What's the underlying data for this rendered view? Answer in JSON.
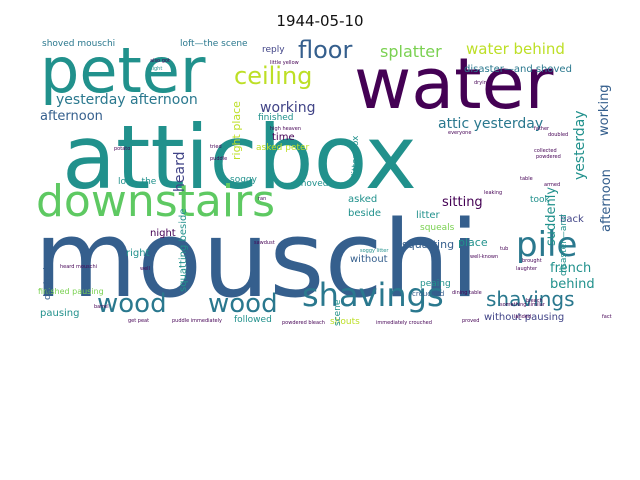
{
  "title": "1944-05-10",
  "colors": {
    "dark_purple": "#440154",
    "indigo": "#414487",
    "blue": "#2a788e",
    "navy": "#355f8d",
    "teal": "#21918c",
    "green": "#22a884",
    "light_green": "#5ec962",
    "lime": "#7ad151",
    "yellow": "#bddf26"
  },
  "words": {
    "mouschi": "mouschi",
    "atticbox": "atticbox",
    "water": "water",
    "peter": "peter",
    "downstairs": "downstairs",
    "pile": "pile",
    "shavings_main": "shavings",
    "shavings_right": "shavings",
    "wood_left": "wood",
    "wood_mid": "wood",
    "floor": "floor",
    "ceiling": "ceiling",
    "splatter": "splatter",
    "water_behind": "water behind",
    "yesterday_afternoon": "yesterday afternoon",
    "attic_yesterday": "attic yesterday",
    "working_left": "working",
    "working_right": "working",
    "afternoon_left": "afternoon",
    "afternoon_right": "afternoon",
    "yesterday_right": "yesterday",
    "heard": "heard",
    "sitting": "sitting",
    "suddenly": "suddenly",
    "french": "french",
    "behind": "behind",
    "right_place": "right place",
    "time": "time",
    "asked_peter": "asked peter",
    "disaster_shoved": "disaster—and shoved",
    "loft_scene": "loft—the scene",
    "shoved_mouschi": "shoved mouschi",
    "reply": "reply",
    "squatting_beside": "squatting beside",
    "litter_box": "litter box",
    "squatting": "squatting",
    "place": "place",
    "without": "without",
    "without_pausing": "without pausing",
    "night": "night",
    "right": "right",
    "pausing": "pausing",
    "finished_pausing": "finished pausing",
    "followed": "followed",
    "shouts": "shouts",
    "asked": "asked",
    "beside": "beside",
    "litter": "litter",
    "back": "back",
    "took": "took",
    "squeals": "squeals",
    "soggy": "soggy",
    "shoved": "shoved",
    "loft_the": "loft—the",
    "dashed": "dashed",
    "finished": "finished",
    "scene": "scene",
    "soggy_litter": "soggy litter",
    "disaster_and": "disaster—and",
    "peaing": "peaing",
    "crouched": "crouched",
    "powdered": "powdered",
    "little_yellow": "little yellow",
    "puddle": "puddle",
    "bleach": "bleach",
    "barrel": "barrel",
    "laughter": "laughter",
    "sawdust": "sawdust",
    "get_peat": "get peat",
    "puddle_immediately": "puddle immediately",
    "powdered_bleach": "powdered bleach",
    "immediately_crouched": "immediately crouched",
    "proved": "proved",
    "tub": "tub",
    "fact": "fact",
    "well_known": "well-known",
    "something_similar": "something similar",
    "drying": "drying",
    "everyone": "everyone",
    "dining_table": "dining table",
    "high_heaven": "high heaven",
    "also_got": "also got",
    "tried": "tried",
    "sight": "sight",
    "ran": "ran",
    "heard_mouschi": "heard mouschi",
    "potato": "potato",
    "collected": "collected",
    "leaking": "leaking",
    "doubled": "doubled",
    "father": "father",
    "armed": "armed",
    "brought": "brought",
    "table": "table",
    "landed": "landed",
    "well": "well"
  }
}
